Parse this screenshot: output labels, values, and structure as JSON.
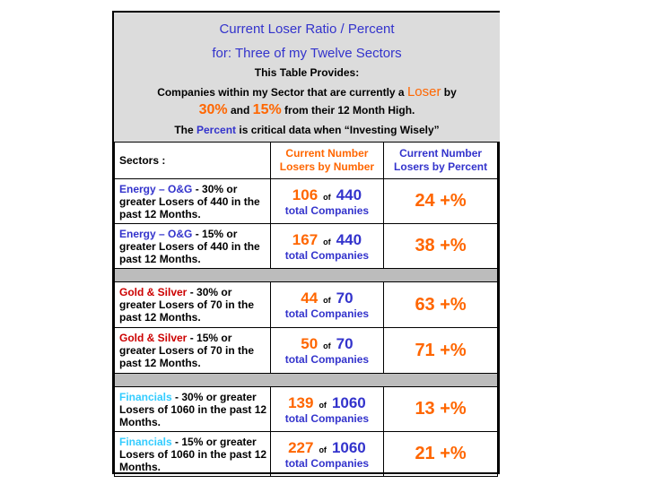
{
  "header": {
    "title_line1": "Current Loser Ratio / Percent",
    "title_line2": "for:  Three  of  my Twelve Sectors",
    "line3": "This Table Provides:",
    "line4_pre": "Companies within my Sector that are currently a ",
    "line4_loser": "Loser",
    "line4_post": " by",
    "line5_pct30": "30%",
    "line5_and": " and ",
    "line5_pct15": "15%",
    "line5_post": "  from their 12 Month High.",
    "line6_pre": "The  ",
    "line6_percent": "Percent",
    "line6_post": "  is critical data when “Investing Wisely”"
  },
  "columns": {
    "sectors": "Sectors :",
    "by_number": "Current Number Losers by Number",
    "by_percent": "Current Number Losers by Percent"
  },
  "rows": [
    {
      "sector": "Energy – O&G",
      "desc": " - 30% or greater Losers of 440 in the past 12 Months.",
      "losers": "106",
      "of": "of",
      "total": "440",
      "total_label": "total Companies",
      "percent": "24 +%"
    },
    {
      "sector": "Energy – O&G",
      "desc": " - 15% or greater Losers  of 440 in the past 12 Months.",
      "losers": "167",
      "of": "of",
      "total": "440",
      "total_label": "total Companies",
      "percent": "38 +%"
    },
    {
      "sector": "Gold & Silver",
      "desc": " - 30% or greater Losers of 70 in the past 12 Months.",
      "losers": "44",
      "of": "of",
      "total": "70",
      "total_label": "total Companies",
      "percent": "63 +%"
    },
    {
      "sector": "Gold & Silver",
      "desc": " - 15% or greater Losers of 70 in the past 12 Months.",
      "losers": "50",
      "of": "of",
      "total": "70",
      "total_label": "total Companies",
      "percent": "71 +%"
    },
    {
      "sector": "Financials",
      "desc": " - 30% or greater Losers of 1060 in the past 12 Months.",
      "losers": "139",
      "of": "of",
      "total": "1060",
      "total_label": "total Companies",
      "percent": "13 +%"
    },
    {
      "sector": "Financials",
      "desc": " - 15% or greater Losers of 1060 in the past 12 Months.",
      "losers": "227",
      "of": "of",
      "total": "1060",
      "total_label": "total Companies",
      "percent": "21 +%"
    }
  ],
  "colors": {
    "energy": "#3333cc",
    "gold": "#cc0000",
    "financials": "#33ccff",
    "accent_orange": "#ff6600",
    "header_bg": "#dcdcdc",
    "separator_bg": "#bcbcbc"
  }
}
